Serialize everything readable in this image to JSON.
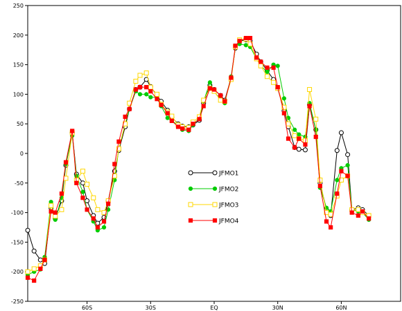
{
  "chart_data": {
    "type": "line",
    "title": "",
    "xlabel": "",
    "ylabel": "",
    "xlim": [
      -88,
      88
    ],
    "ylim": [
      -250,
      250
    ],
    "x_ticks": [
      {
        "value": -60,
        "label": "60S"
      },
      {
        "value": -30,
        "label": "30S"
      },
      {
        "value": 0,
        "label": "EQ"
      },
      {
        "value": 30,
        "label": "30N"
      },
      {
        "value": 60,
        "label": "60N"
      }
    ],
    "y_ticks": [
      -250,
      -200,
      -150,
      -100,
      -50,
      0,
      50,
      100,
      150,
      200,
      250
    ],
    "grid": false,
    "legend_position": "center",
    "series": [
      {
        "name": "JFMO1",
        "color": "#000000",
        "marker": "open-circle",
        "points": [
          [
            -88,
            -130
          ],
          [
            -85,
            -165
          ],
          [
            -82,
            -180
          ],
          [
            -80,
            -186
          ],
          [
            -77,
            -92
          ],
          [
            -75,
            -110
          ],
          [
            -72,
            -80
          ],
          [
            -70,
            -20
          ],
          [
            -67,
            35
          ],
          [
            -65,
            -35
          ],
          [
            -62,
            -50
          ],
          [
            -60,
            -80
          ],
          [
            -57,
            -105
          ],
          [
            -55,
            -118
          ],
          [
            -52,
            -108
          ],
          [
            -50,
            -80
          ],
          [
            -47,
            -30
          ],
          [
            -45,
            5
          ],
          [
            -42,
            45
          ],
          [
            -40,
            75
          ],
          [
            -37,
            108
          ],
          [
            -35,
            112
          ],
          [
            -32,
            125
          ],
          [
            -30,
            113
          ],
          [
            -27,
            98
          ],
          [
            -25,
            88
          ],
          [
            -22,
            73
          ],
          [
            -20,
            61
          ],
          [
            -17,
            50
          ],
          [
            -15,
            46
          ],
          [
            -12,
            45
          ],
          [
            -10,
            48
          ],
          [
            -7,
            56
          ],
          [
            -5,
            85
          ],
          [
            -2,
            115
          ],
          [
            0,
            108
          ],
          [
            3,
            98
          ],
          [
            5,
            90
          ],
          [
            8,
            128
          ],
          [
            10,
            178
          ],
          [
            12,
            190
          ],
          [
            15,
            192
          ],
          [
            17,
            190
          ],
          [
            20,
            168
          ],
          [
            22,
            155
          ],
          [
            25,
            140
          ],
          [
            28,
            125
          ],
          [
            30,
            110
          ],
          [
            33,
            72
          ],
          [
            35,
            45
          ],
          [
            38,
            10
          ],
          [
            40,
            7
          ],
          [
            43,
            6
          ],
          [
            45,
            82
          ],
          [
            48,
            40
          ],
          [
            50,
            -50
          ],
          [
            53,
            -95
          ],
          [
            55,
            -105
          ],
          [
            58,
            5
          ],
          [
            60,
            35
          ],
          [
            63,
            -2
          ],
          [
            65,
            -95
          ],
          [
            68,
            -92
          ],
          [
            70,
            -95
          ],
          [
            73,
            -105
          ]
        ]
      },
      {
        "name": "JFMO2",
        "color": "#00cc00",
        "marker": "filled-circle",
        "points": [
          [
            -88,
            -205
          ],
          [
            -85,
            -200
          ],
          [
            -82,
            -196
          ],
          [
            -80,
            -175
          ],
          [
            -77,
            -82
          ],
          [
            -75,
            -112
          ],
          [
            -72,
            -75
          ],
          [
            -70,
            -18
          ],
          [
            -67,
            30
          ],
          [
            -65,
            -38
          ],
          [
            -62,
            -65
          ],
          [
            -60,
            -95
          ],
          [
            -57,
            -115
          ],
          [
            -55,
            -130
          ],
          [
            -52,
            -125
          ],
          [
            -50,
            -95
          ],
          [
            -47,
            -45
          ],
          [
            -45,
            8
          ],
          [
            -42,
            50
          ],
          [
            -40,
            75
          ],
          [
            -37,
            105
          ],
          [
            -35,
            100
          ],
          [
            -32,
            100
          ],
          [
            -30,
            95
          ],
          [
            -27,
            95
          ],
          [
            -25,
            80
          ],
          [
            -22,
            60
          ],
          [
            -20,
            55
          ],
          [
            -17,
            48
          ],
          [
            -15,
            40
          ],
          [
            -12,
            38
          ],
          [
            -10,
            48
          ],
          [
            -7,
            60
          ],
          [
            -5,
            88
          ],
          [
            -2,
            120
          ],
          [
            0,
            105
          ],
          [
            3,
            90
          ],
          [
            5,
            85
          ],
          [
            8,
            130
          ],
          [
            10,
            180
          ],
          [
            12,
            185
          ],
          [
            15,
            183
          ],
          [
            17,
            180
          ],
          [
            20,
            160
          ],
          [
            22,
            148
          ],
          [
            25,
            138
          ],
          [
            28,
            150
          ],
          [
            30,
            148
          ],
          [
            33,
            93
          ],
          [
            35,
            60
          ],
          [
            38,
            40
          ],
          [
            40,
            32
          ],
          [
            43,
            28
          ],
          [
            45,
            85
          ],
          [
            48,
            40
          ],
          [
            50,
            -58
          ],
          [
            53,
            -92
          ],
          [
            55,
            -98
          ],
          [
            58,
            -45
          ],
          [
            60,
            -25
          ],
          [
            63,
            -20
          ],
          [
            65,
            -95
          ],
          [
            68,
            -98
          ],
          [
            70,
            -100
          ],
          [
            73,
            -112
          ]
        ]
      },
      {
        "name": "JFMO3",
        "color": "#ffd700",
        "marker": "open-square",
        "points": [
          [
            -88,
            -200
          ],
          [
            -85,
            -195
          ],
          [
            -82,
            -190
          ],
          [
            -80,
            -180
          ],
          [
            -77,
            -88
          ],
          [
            -75,
            -106
          ],
          [
            -72,
            -95
          ],
          [
            -70,
            -42
          ],
          [
            -67,
            35
          ],
          [
            -65,
            -45
          ],
          [
            -62,
            -30
          ],
          [
            -60,
            -52
          ],
          [
            -57,
            -75
          ],
          [
            -55,
            -95
          ],
          [
            -52,
            -100
          ],
          [
            -50,
            -80
          ],
          [
            -47,
            -38
          ],
          [
            -45,
            8
          ],
          [
            -42,
            50
          ],
          [
            -40,
            85
          ],
          [
            -37,
            122
          ],
          [
            -35,
            132
          ],
          [
            -32,
            136
          ],
          [
            -30,
            112
          ],
          [
            -27,
            100
          ],
          [
            -25,
            83
          ],
          [
            -22,
            70
          ],
          [
            -20,
            63
          ],
          [
            -17,
            48
          ],
          [
            -15,
            45
          ],
          [
            -12,
            44
          ],
          [
            -10,
            53
          ],
          [
            -7,
            62
          ],
          [
            -5,
            90
          ],
          [
            -2,
            110
          ],
          [
            0,
            105
          ],
          [
            3,
            90
          ],
          [
            5,
            88
          ],
          [
            8,
            125
          ],
          [
            10,
            180
          ],
          [
            12,
            192
          ],
          [
            15,
            193
          ],
          [
            17,
            185
          ],
          [
            20,
            160
          ],
          [
            22,
            148
          ],
          [
            25,
            130
          ],
          [
            28,
            120
          ],
          [
            30,
            110
          ],
          [
            33,
            78
          ],
          [
            35,
            50
          ],
          [
            38,
            30
          ],
          [
            40,
            25
          ],
          [
            43,
            22
          ],
          [
            45,
            108
          ],
          [
            48,
            58
          ],
          [
            50,
            -45
          ],
          [
            53,
            -100
          ],
          [
            55,
            -103
          ],
          [
            58,
            -72
          ],
          [
            60,
            -45
          ],
          [
            63,
            -38
          ],
          [
            65,
            -95
          ],
          [
            68,
            -95
          ],
          [
            70,
            -100
          ],
          [
            73,
            -105
          ]
        ]
      },
      {
        "name": "JFMO4",
        "color": "#ff0000",
        "marker": "filled-square",
        "points": [
          [
            -88,
            -210
          ],
          [
            -85,
            -215
          ],
          [
            -82,
            -195
          ],
          [
            -80,
            -180
          ],
          [
            -77,
            -98
          ],
          [
            -75,
            -100
          ],
          [
            -72,
            -68
          ],
          [
            -70,
            -15
          ],
          [
            -67,
            38
          ],
          [
            -65,
            -50
          ],
          [
            -62,
            -75
          ],
          [
            -60,
            -95
          ],
          [
            -57,
            -110
          ],
          [
            -55,
            -125
          ],
          [
            -52,
            -115
          ],
          [
            -50,
            -85
          ],
          [
            -47,
            -18
          ],
          [
            -45,
            20
          ],
          [
            -42,
            62
          ],
          [
            -40,
            75
          ],
          [
            -37,
            108
          ],
          [
            -35,
            112
          ],
          [
            -32,
            112
          ],
          [
            -30,
            105
          ],
          [
            -27,
            92
          ],
          [
            -25,
            82
          ],
          [
            -22,
            68
          ],
          [
            -20,
            55
          ],
          [
            -17,
            45
          ],
          [
            -15,
            42
          ],
          [
            -12,
            40
          ],
          [
            -10,
            50
          ],
          [
            -7,
            58
          ],
          [
            -5,
            80
          ],
          [
            -2,
            110
          ],
          [
            0,
            108
          ],
          [
            3,
            98
          ],
          [
            5,
            88
          ],
          [
            8,
            128
          ],
          [
            10,
            182
          ],
          [
            12,
            190
          ],
          [
            15,
            195
          ],
          [
            17,
            195
          ],
          [
            20,
            162
          ],
          [
            22,
            155
          ],
          [
            25,
            145
          ],
          [
            28,
            145
          ],
          [
            30,
            112
          ],
          [
            33,
            68
          ],
          [
            35,
            25
          ],
          [
            38,
            10
          ],
          [
            40,
            25
          ],
          [
            43,
            15
          ],
          [
            45,
            80
          ],
          [
            48,
            28
          ],
          [
            50,
            -55
          ],
          [
            53,
            -115
          ],
          [
            55,
            -125
          ],
          [
            58,
            -68
          ],
          [
            60,
            -30
          ],
          [
            63,
            -38
          ],
          [
            65,
            -100
          ],
          [
            68,
            -105
          ],
          [
            70,
            -98
          ],
          [
            73,
            -110
          ]
        ]
      }
    ]
  }
}
